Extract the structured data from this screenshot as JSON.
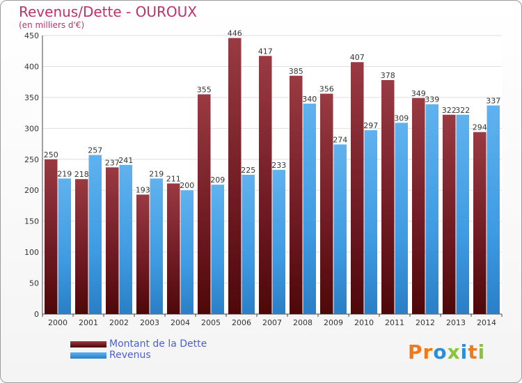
{
  "chart_data": {
    "type": "bar",
    "title": "Revenus/Dette - OUROUX",
    "subtitle": "(en milliers d'€)",
    "categories": [
      "2000",
      "2001",
      "2002",
      "2003",
      "2004",
      "2005",
      "2006",
      "2007",
      "2008",
      "2009",
      "2010",
      "2011",
      "2012",
      "2013",
      "2014"
    ],
    "series": [
      {
        "name": "Montant de la Dette",
        "color": "#7a1f28",
        "values": [
          250,
          218,
          237,
          193,
          211,
          355,
          446,
          417,
          385,
          356,
          407,
          378,
          349,
          322,
          294
        ]
      },
      {
        "name": "Revenus",
        "color": "#3f9be2",
        "values": [
          219,
          257,
          241,
          219,
          200,
          209,
          225,
          233,
          340,
          274,
          297,
          309,
          339,
          322,
          337
        ]
      }
    ],
    "yticks": [
      0,
      50,
      100,
      150,
      200,
      250,
      300,
      350,
      400,
      450
    ],
    "ylim": [
      0,
      450
    ],
    "grid": true,
    "legend_position": "bottom-left"
  },
  "branding": {
    "logo_text": "Proxiti",
    "logo_letters": [
      {
        "ch": "P",
        "color": "#f07a1a"
      },
      {
        "ch": "r",
        "color": "#f07a1a"
      },
      {
        "ch": "o",
        "color": "#2a8fd8"
      },
      {
        "ch": "x",
        "color": "#8ac43a"
      },
      {
        "ch": "i",
        "color": "#2a8fd8"
      },
      {
        "ch": "t",
        "color": "#f07a1a"
      },
      {
        "ch": "i",
        "color": "#8ac43a"
      }
    ]
  }
}
